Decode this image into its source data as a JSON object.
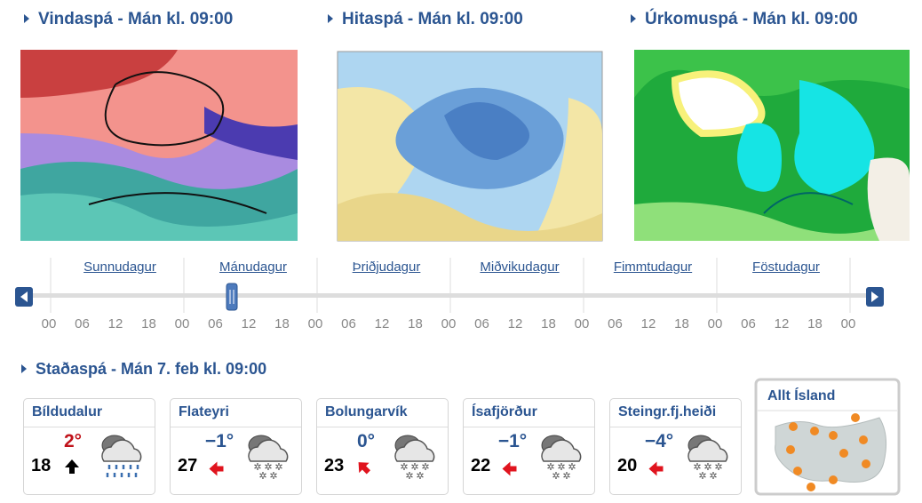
{
  "maps": [
    {
      "title": "Vindaspá - Mán kl. 09:00"
    },
    {
      "title": "Hitaspá - Mán kl. 09:00"
    },
    {
      "title": "Úrkomuspá - Mán kl. 09:00"
    }
  ],
  "timeline": {
    "days": [
      "Sunnudagur",
      "Mánudagur",
      "Þriðjudagur",
      "Miðvikudagur",
      "Fimmtudagur",
      "Föstudagur"
    ],
    "hours": [
      "00",
      "06",
      "12",
      "18",
      "00",
      "06",
      "12",
      "18",
      "00",
      "06",
      "12",
      "18",
      "00",
      "06",
      "12",
      "18",
      "00",
      "06",
      "12",
      "18",
      "00",
      "06",
      "12",
      "18",
      "00"
    ]
  },
  "forecast": {
    "title": "Staðaspá - Mán 7. feb  kl. 09:00",
    "stations": [
      {
        "name": "Bíldudalur",
        "temp": "2°",
        "wind": 18
      },
      {
        "name": "Flateyri",
        "temp": "−1°",
        "wind": 27
      },
      {
        "name": "Bolungarvík",
        "temp": "0°",
        "wind": 23
      },
      {
        "name": "Ísafjörður",
        "temp": "−1°",
        "wind": 22
      },
      {
        "name": "Steingr.fj.heiði",
        "temp": "−4°",
        "wind": 20
      }
    ],
    "all": "Allt Ísland"
  }
}
